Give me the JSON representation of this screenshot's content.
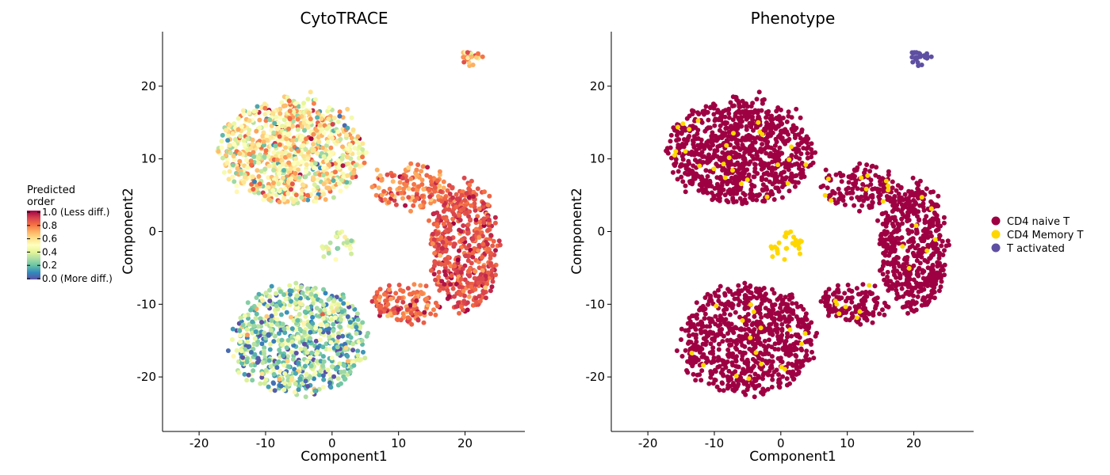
{
  "chart_data": [
    {
      "type": "scatter",
      "title": "CytoTRACE",
      "xlabel": "Component1",
      "ylabel": "Component2",
      "xlim": [
        -25.5,
        29
      ],
      "ylim": [
        -27.5,
        27.5
      ],
      "x_ticks": [
        -20,
        -10,
        0,
        10,
        20
      ],
      "y_ticks": [
        -20,
        -10,
        0,
        10,
        20
      ],
      "x_tick_labels": [
        "-20",
        "-10",
        "0",
        "10",
        "20"
      ],
      "y_tick_labels": [
        "-20",
        "-10",
        "0",
        "10",
        "20"
      ],
      "color_variable": "Predicted order",
      "legend": {
        "title_lines": [
          "Predicted",
          "order"
        ],
        "placement": "left",
        "breaks": [
          1.0,
          0.8,
          0.6,
          0.4,
          0.2,
          0.0
        ],
        "labels": [
          "1.0 (Less diff.)",
          "0.8",
          "0.6",
          "0.4",
          "0.2",
          "0.0 (More diff.)"
        ],
        "colormap": [
          "#5E4FA2",
          "#3288BD",
          "#66C2A5",
          "#ABDDA4",
          "#E6F598",
          "#FFFFBF",
          "#FEE08B",
          "#FDAE61",
          "#F46D43",
          "#D53E4F",
          "#9E0142"
        ]
      },
      "clusters": [
        {
          "name": "upper-left",
          "center": [
            -6,
            11
          ],
          "radii": [
            11,
            7
          ],
          "n": 900,
          "value_mean": 0.55,
          "value_sd": 0.18
        },
        {
          "name": "middle-band",
          "center": [
            12,
            6
          ],
          "radii": [
            6,
            3
          ],
          "n": 150,
          "value_mean": 0.78,
          "value_sd": 0.08
        },
        {
          "name": "right-arc",
          "center": [
            20,
            -2
          ],
          "radii": [
            5,
            9
          ],
          "n": 520,
          "value_mean": 0.86,
          "value_sd": 0.06
        },
        {
          "name": "lower-right-arc",
          "center": [
            11,
            -10
          ],
          "radii": [
            5,
            2.6
          ],
          "n": 140,
          "value_mean": 0.83,
          "value_sd": 0.07
        },
        {
          "name": "lower-left",
          "center": [
            -5,
            -15
          ],
          "radii": [
            10,
            7.5
          ],
          "n": 760,
          "value_mean": 0.28,
          "value_sd": 0.17
        },
        {
          "name": "small-center",
          "center": [
            1.5,
            -2
          ],
          "radii": [
            3,
            1.5
          ],
          "n": 30,
          "value_mean": 0.38,
          "value_sd": 0.12
        },
        {
          "name": "top-right",
          "center": [
            21,
            24
          ],
          "radii": [
            1.5,
            1
          ],
          "n": 25,
          "value_mean": 0.72,
          "value_sd": 0.15
        }
      ]
    },
    {
      "type": "scatter",
      "title": "Phenotype",
      "xlabel": "Component1",
      "ylabel": "Component2",
      "xlim": [
        -25.5,
        29
      ],
      "ylim": [
        -27.5,
        27.5
      ],
      "x_ticks": [
        -20,
        -10,
        0,
        10,
        20
      ],
      "y_ticks": [
        -20,
        -10,
        0,
        10,
        20
      ],
      "x_tick_labels": [
        "-20",
        "-10",
        "0",
        "10",
        "20"
      ],
      "y_tick_labels": [
        "-20",
        "-10",
        "0",
        "10",
        "20"
      ],
      "legend": {
        "placement": "right",
        "entries": [
          {
            "label": "CD4 naive T",
            "color": "#9E0142"
          },
          {
            "label": "CD4 Memory T",
            "color": "#FFD700"
          },
          {
            "label": "T activated",
            "color": "#5E4FA2"
          }
        ]
      },
      "clusters": [
        {
          "name": "upper-left",
          "center": [
            -6,
            11
          ],
          "radii": [
            11,
            7
          ],
          "n": 900,
          "category": "CD4 naive T",
          "memory_fraction": 0.02
        },
        {
          "name": "middle-band",
          "center": [
            12,
            6
          ],
          "radii": [
            6,
            3
          ],
          "n": 150,
          "category": "CD4 naive T",
          "memory_fraction": 0.05
        },
        {
          "name": "right-arc",
          "center": [
            20,
            -2
          ],
          "radii": [
            5,
            9
          ],
          "n": 520,
          "category": "CD4 naive T",
          "memory_fraction": 0.03
        },
        {
          "name": "lower-right-arc",
          "center": [
            11,
            -10
          ],
          "radii": [
            5,
            2.6
          ],
          "n": 140,
          "category": "CD4 naive T",
          "memory_fraction": 0.03
        },
        {
          "name": "lower-left",
          "center": [
            -5,
            -15
          ],
          "radii": [
            10,
            7.5
          ],
          "n": 760,
          "category": "CD4 naive T",
          "memory_fraction": 0.03
        },
        {
          "name": "small-center",
          "center": [
            1.5,
            -2
          ],
          "radii": [
            3,
            1.5
          ],
          "n": 30,
          "category": "CD4 Memory T",
          "memory_fraction": 1.0
        },
        {
          "name": "top-right",
          "center": [
            21,
            24
          ],
          "radii": [
            1.5,
            1
          ],
          "n": 25,
          "category": "T activated",
          "memory_fraction": 0.0
        }
      ]
    }
  ]
}
